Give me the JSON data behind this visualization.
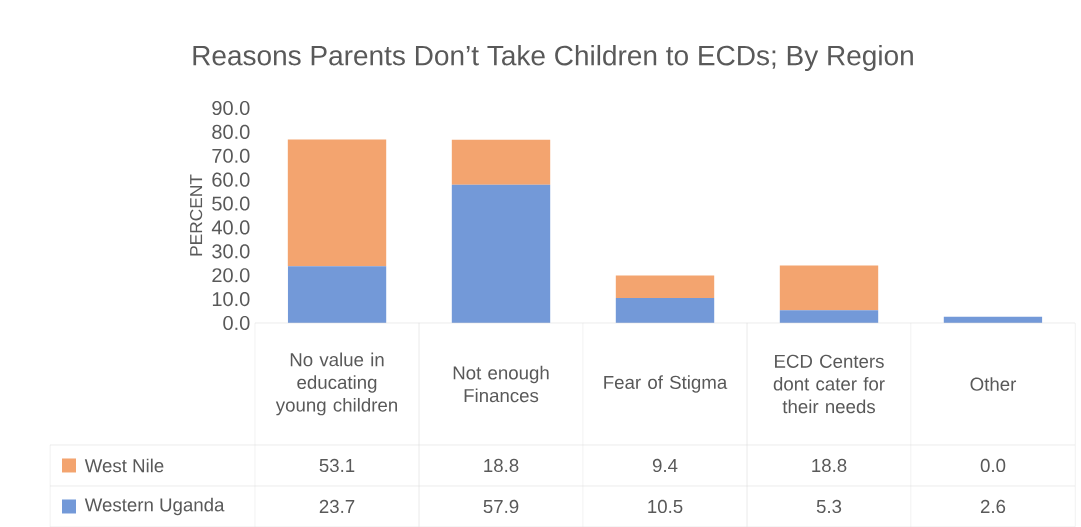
{
  "chart_data": {
    "type": "bar",
    "title": "Reasons Parents Don’t Take Children to ECDs; By Region",
    "ylabel": "PERCENT",
    "categories": [
      "No value in educating young children",
      "Not enough Finances",
      "Fear of Stigma",
      "ECD Centers dont cater for their needs",
      "Other"
    ],
    "stacked": true,
    "legend": "bottom",
    "series": [
      {
        "name": "Western Uganda",
        "color": "#7399d8",
        "values": [
          23.7,
          57.9,
          10.5,
          5.3,
          2.6
        ],
        "value_labels": [
          "23.7",
          "57.9",
          "10.5",
          "5.3",
          "2.6"
        ]
      },
      {
        "name": "West Nile",
        "color": "#f3a46f",
        "values": [
          53.1,
          18.8,
          9.4,
          18.8,
          0.0
        ],
        "value_labels": [
          "53.1",
          "18.8",
          "9.4",
          "18.8",
          "0.0"
        ]
      }
    ],
    "ylim": [
      0,
      90
    ],
    "yticks": [
      {
        "value": 0,
        "label": "0.0"
      },
      {
        "value": 10,
        "label": "10.0"
      },
      {
        "value": 20,
        "label": "20.0"
      },
      {
        "value": 30,
        "label": "30.0"
      },
      {
        "value": 40,
        "label": "40.0"
      },
      {
        "value": 50,
        "label": "50.0"
      },
      {
        "value": 60,
        "label": "60.0"
      },
      {
        "value": 70,
        "label": "70.0"
      },
      {
        "value": 80,
        "label": "80.0"
      },
      {
        "value": 90,
        "label": "90.0"
      }
    ]
  }
}
